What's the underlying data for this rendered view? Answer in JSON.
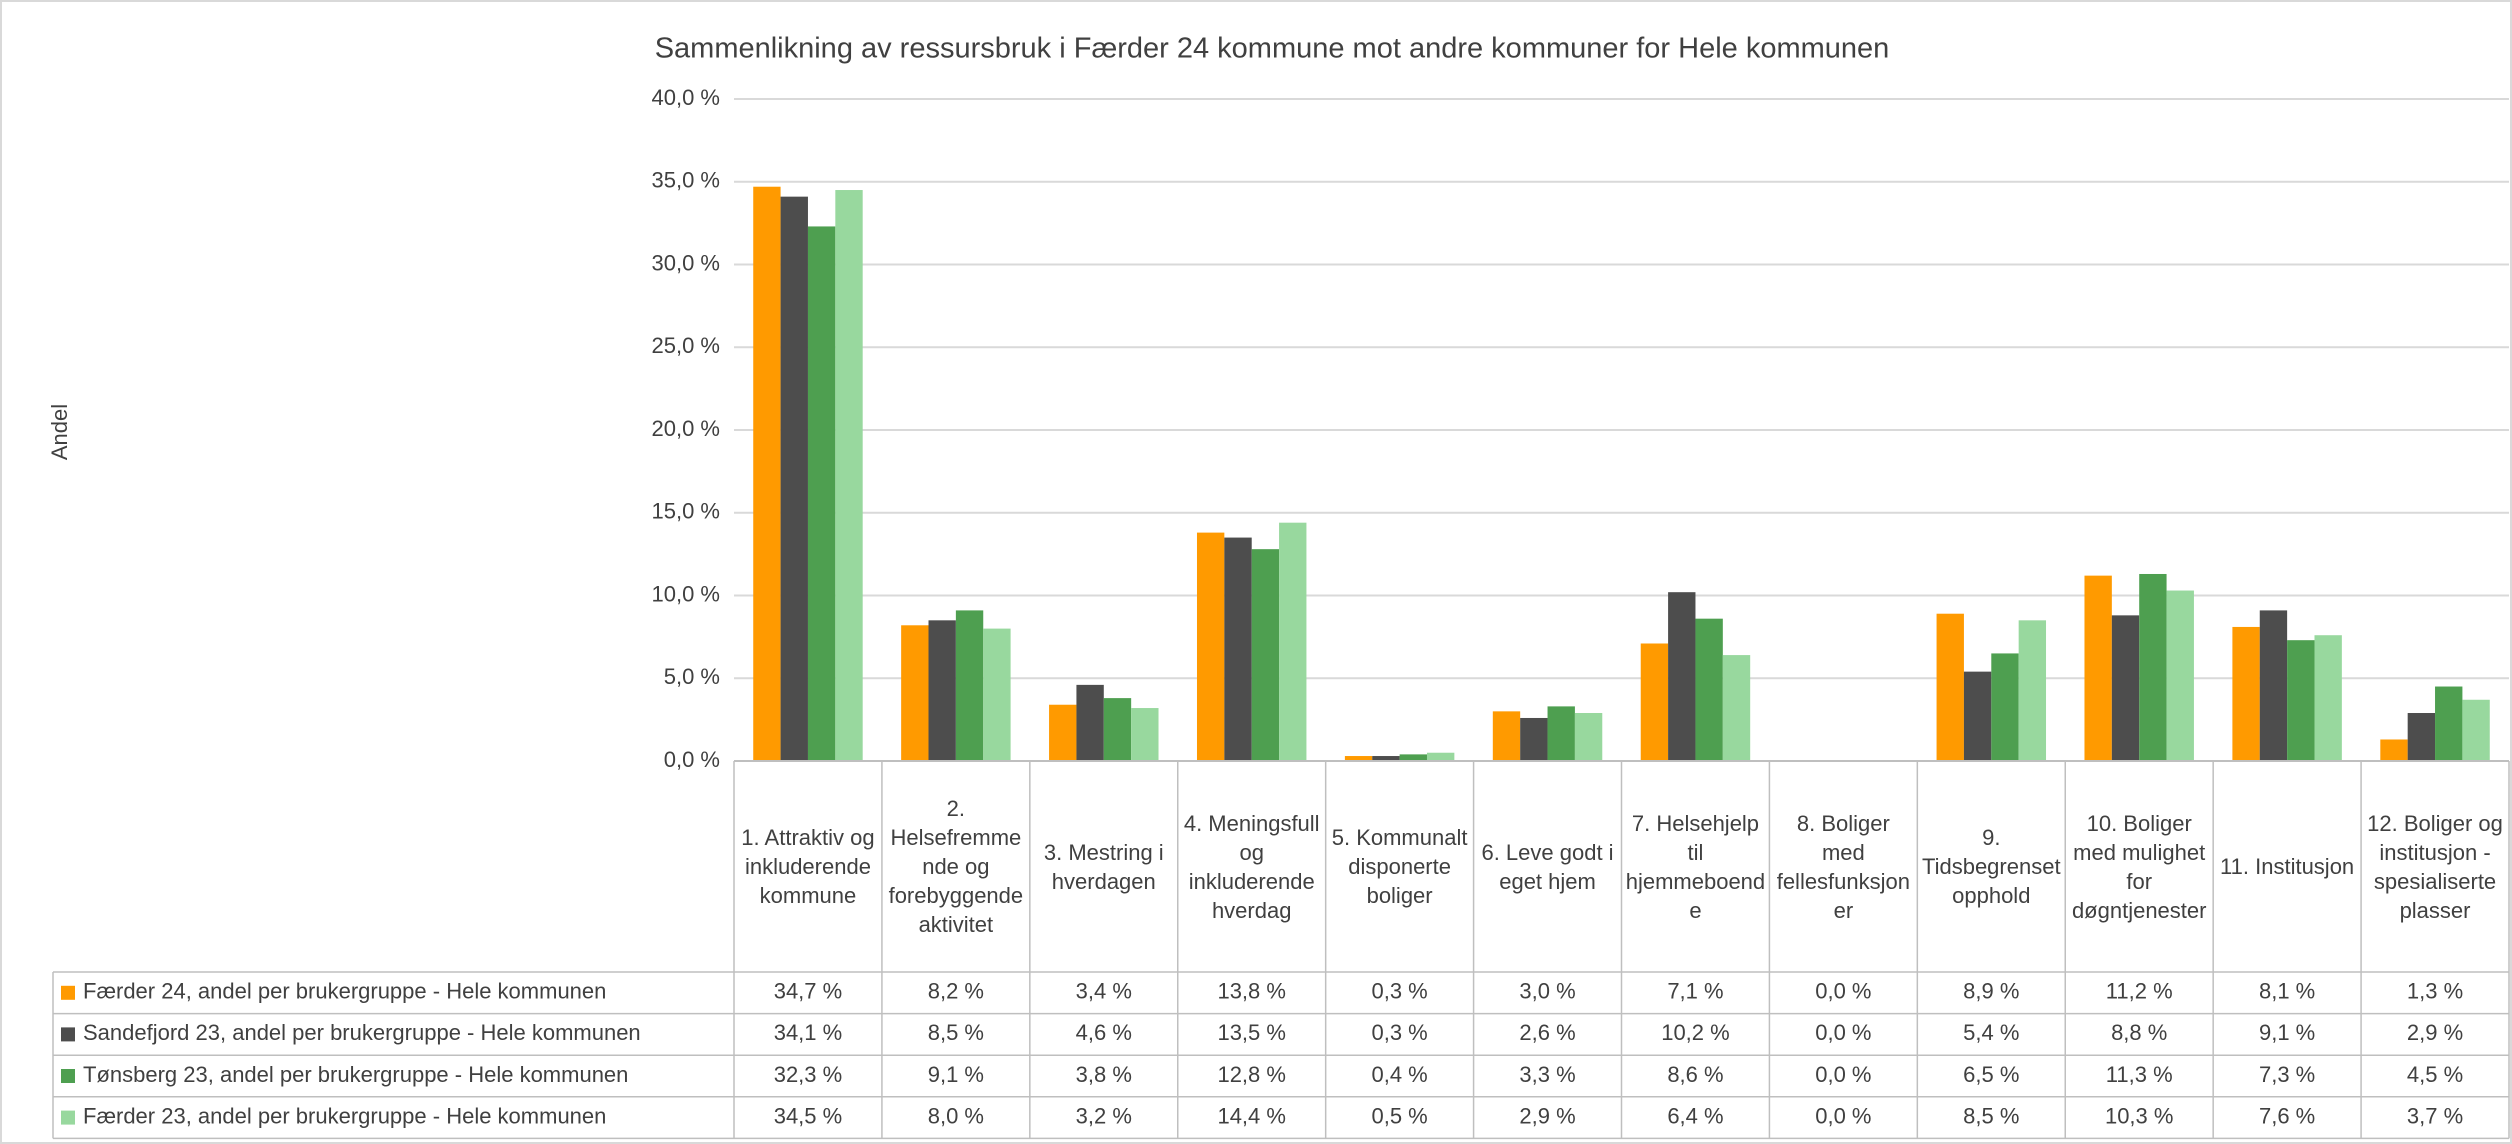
{
  "chart_data": {
    "type": "bar",
    "title": "Sammenlikning av ressursbruk i Færder 24 kommune mot andre kommuner for Hele kommunen",
    "y_label": "Andel",
    "categories": [
      "1. Attraktiv og inkluderende kommune",
      "2. Helsefremmende og forebyggende aktivitet",
      "3. Mestring i hverdagen",
      "4. Meningsfull og inkluderende hverdag",
      "5. Kommunalt disponerte boliger",
      "6. Leve godt i eget hjem",
      "7. Helsehjelp til hjemmeboende",
      "8. Boliger med fellesfunksjoner",
      "9. Tidsbegrenset opphold",
      "10. Boliger med mulighet for døgntjenester",
      "11. Institusjon",
      "12. Boliger og institusjon - spesialiserte plasser"
    ],
    "series": [
      {
        "name": "Færder 24, andel per brukergruppe - Hele kommunen",
        "color": "#ff9a00",
        "values": [
          34.7,
          8.2,
          3.4,
          13.8,
          0.3,
          3.0,
          7.1,
          0.0,
          8.9,
          11.2,
          8.1,
          1.3
        ],
        "value_labels": [
          "34,7 %",
          "8,2 %",
          "3,4 %",
          "13,8 %",
          "0,3 %",
          "3,0 %",
          "7,1 %",
          "0,0 %",
          "8,9 %",
          "11,2 %",
          "8,1 %",
          "1,3 %"
        ]
      },
      {
        "name": "Sandefjord 23, andel per brukergruppe - Hele kommunen",
        "color": "#4d4d4d",
        "values": [
          34.1,
          8.5,
          4.6,
          13.5,
          0.3,
          2.6,
          10.2,
          0.0,
          5.4,
          8.8,
          9.1,
          2.9
        ],
        "value_labels": [
          "34,1 %",
          "8,5 %",
          "4,6 %",
          "13,5 %",
          "0,3 %",
          "2,6 %",
          "10,2 %",
          "0,0 %",
          "5,4 %",
          "8,8 %",
          "9,1 %",
          "2,9 %"
        ]
      },
      {
        "name": "Tønsberg 23, andel per brukergruppe - Hele kommunen",
        "color": "#4e9f50",
        "values": [
          32.3,
          9.1,
          3.8,
          12.8,
          0.4,
          3.3,
          8.6,
          0.0,
          6.5,
          11.3,
          7.3,
          4.5
        ],
        "value_labels": [
          "32,3 %",
          "9,1 %",
          "3,8 %",
          "12,8 %",
          "0,4 %",
          "3,3 %",
          "8,6 %",
          "0,0 %",
          "6,5 %",
          "11,3 %",
          "7,3 %",
          "4,5 %"
        ]
      },
      {
        "name": "Færder 23, andel per brukergruppe - Hele kommunen",
        "color": "#98d89e",
        "values": [
          34.5,
          8.0,
          3.2,
          14.4,
          0.5,
          2.9,
          6.4,
          0.0,
          8.5,
          10.3,
          7.6,
          3.7
        ],
        "value_labels": [
          "34,5 %",
          "8,0 %",
          "3,2 %",
          "14,4 %",
          "0,5 %",
          "2,9 %",
          "6,4 %",
          "0,0 %",
          "8,5 %",
          "10,3 %",
          "7,6 %",
          "3,7 %"
        ]
      }
    ],
    "ylim": [
      0,
      40
    ],
    "yticks": [
      {
        "value": 0,
        "label": "0,0 %"
      },
      {
        "value": 5,
        "label": "5,0 %"
      },
      {
        "value": 10,
        "label": "10,0 %"
      },
      {
        "value": 15,
        "label": "15,0 %"
      },
      {
        "value": 20,
        "label": "20,0 %"
      },
      {
        "value": 25,
        "label": "25,0 %"
      },
      {
        "value": 30,
        "label": "30,0 %"
      },
      {
        "value": 35,
        "label": "35,0 %"
      },
      {
        "value": 40,
        "label": "40,0 %"
      }
    ],
    "grid": true
  }
}
